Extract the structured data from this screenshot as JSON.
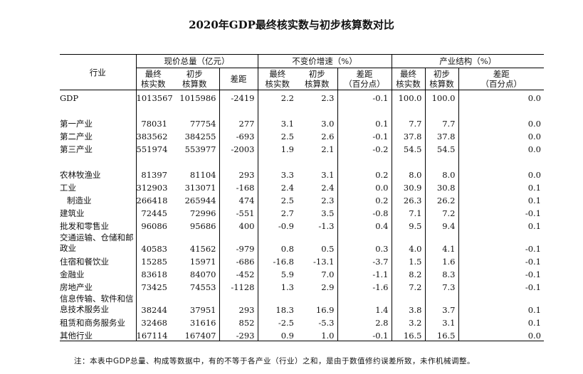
{
  "title": "2020年GDP最终核实数与初步核算数对比",
  "header": {
    "industry": "行业",
    "group_total": "现价总量（亿元）",
    "group_growth": "不变价增速（%）",
    "group_structure": "产业结构（%）",
    "final": "最终\n核实数",
    "prelim": "初步\n核算数",
    "diff": "差距",
    "diff_pp": "差距\n（百分点）"
  },
  "rows": [
    {
      "name": "GDP",
      "v": [
        "1013567",
        "1015986",
        "-2419",
        "2.2",
        "2.3",
        "-0.1",
        "100.0",
        "100.0",
        "0.0"
      ]
    },
    {
      "name": "第一产业",
      "v": [
        "78031",
        "77754",
        "277",
        "3.1",
        "3.0",
        "0.1",
        "7.7",
        "7.7",
        "0.0"
      ]
    },
    {
      "name": "第二产业",
      "v": [
        "383562",
        "384255",
        "-693",
        "2.5",
        "2.6",
        "-0.1",
        "37.8",
        "37.8",
        "0.0"
      ]
    },
    {
      "name": "第三产业",
      "v": [
        "551974",
        "553977",
        "-2003",
        "1.9",
        "2.1",
        "-0.2",
        "54.5",
        "54.5",
        "0.0"
      ]
    },
    {
      "name": "农林牧渔业",
      "v": [
        "81397",
        "81104",
        "293",
        "3.3",
        "3.1",
        "0.2",
        "8.0",
        "8.0",
        "0.0"
      ]
    },
    {
      "name": "工业",
      "v": [
        "312903",
        "313071",
        "-168",
        "2.4",
        "2.4",
        "0.0",
        "30.9",
        "30.8",
        "0.1"
      ]
    },
    {
      "name": "制造业",
      "v": [
        "266418",
        "265944",
        "474",
        "2.5",
        "2.3",
        "0.2",
        "26.3",
        "26.2",
        "0.1"
      ]
    },
    {
      "name": "建筑业",
      "v": [
        "72445",
        "72996",
        "-551",
        "2.7",
        "3.5",
        "-0.8",
        "7.1",
        "7.2",
        "-0.1"
      ]
    },
    {
      "name": "批发和零售业",
      "v": [
        "96086",
        "95686",
        "400",
        "-0.9",
        "-1.3",
        "0.4",
        "9.5",
        "9.4",
        "0.1"
      ]
    },
    {
      "name": "交通运输、仓储和邮政业",
      "v": [
        "40583",
        "41562",
        "-979",
        "0.8",
        "0.5",
        "0.3",
        "4.0",
        "4.1",
        "-0.1"
      ]
    },
    {
      "name": "住宿和餐饮业",
      "v": [
        "15285",
        "15971",
        "-686",
        "-16.8",
        "-13.1",
        "-3.7",
        "1.5",
        "1.6",
        "-0.1"
      ]
    },
    {
      "name": "金融业",
      "v": [
        "83618",
        "84070",
        "-452",
        "5.9",
        "7.0",
        "-1.1",
        "8.2",
        "8.3",
        "-0.1"
      ]
    },
    {
      "name": "房地产业",
      "v": [
        "73425",
        "74553",
        "-1128",
        "1.3",
        "2.9",
        "-1.6",
        "7.2",
        "7.3",
        "-0.1"
      ]
    },
    {
      "name": "信息传输、软件和信息技术服务业",
      "v": [
        "38244",
        "37951",
        "293",
        "18.3",
        "16.9",
        "1.4",
        "3.8",
        "3.7",
        "0.1"
      ]
    },
    {
      "name": "租赁和商务服务业",
      "v": [
        "32468",
        "31616",
        "852",
        "-2.5",
        "-5.3",
        "2.8",
        "3.2",
        "3.1",
        "0.1"
      ]
    },
    {
      "name": "其他行业",
      "v": [
        "167114",
        "167407",
        "-293",
        "0.9",
        "1.0",
        "-0.1",
        "16.5",
        "16.5",
        "0.0"
      ]
    }
  ],
  "note": "注：本表中GDP总量、构成等数据中，有的不等于各产业（行业）之和，是由于数值修约误差所致，未作机械调整。"
}
